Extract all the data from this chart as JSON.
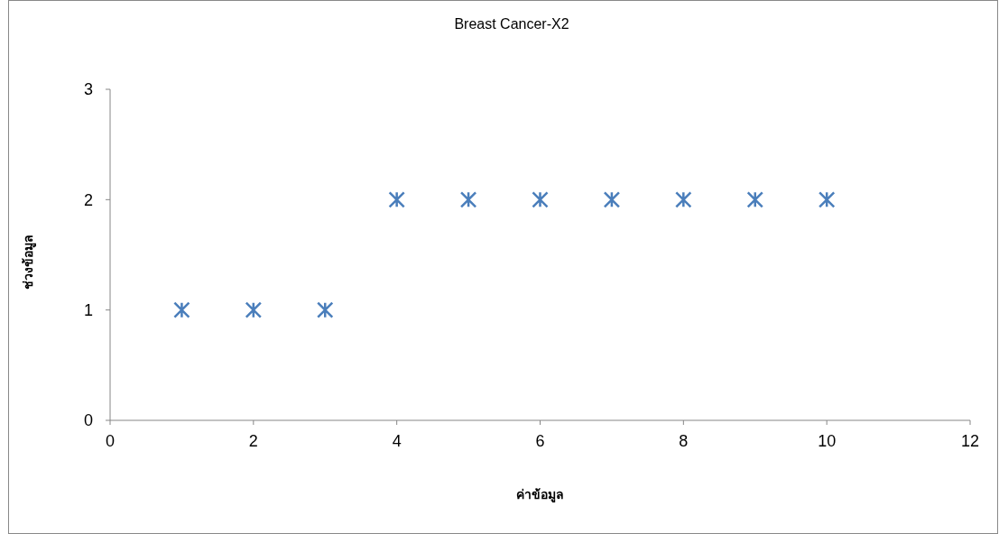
{
  "chart_data": {
    "type": "scatter",
    "title": "Breast Cancer-X2",
    "xlabel": "ค่าข้อมูล",
    "ylabel": "ช่วงข้อมูล",
    "x": [
      1,
      2,
      3,
      4,
      5,
      6,
      7,
      8,
      9,
      10
    ],
    "series": [
      {
        "color": "#4a7ebb",
        "values": [
          1,
          1,
          1,
          2,
          2,
          2,
          2,
          2,
          2,
          2
        ]
      }
    ],
    "xlim": [
      0,
      12
    ],
    "xticks": [
      0,
      2,
      4,
      6,
      8,
      10,
      12
    ],
    "ylim": [
      0,
      3
    ],
    "yticks": [
      0,
      1,
      2,
      3
    ],
    "grid": false,
    "marker": "cross"
  }
}
